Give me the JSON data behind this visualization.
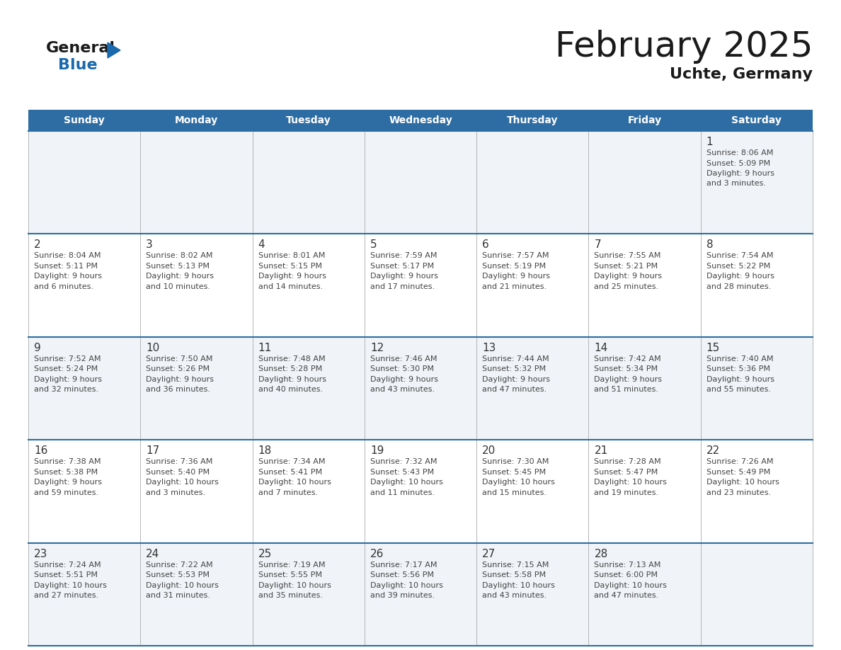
{
  "title": "February 2025",
  "subtitle": "Uchte, Germany",
  "days_of_week": [
    "Sunday",
    "Monday",
    "Tuesday",
    "Wednesday",
    "Thursday",
    "Friday",
    "Saturday"
  ],
  "header_bg": "#2E6DA4",
  "header_text_color": "#FFFFFF",
  "cell_bg_even": "#F0F4F8",
  "cell_bg_odd": "#FFFFFF",
  "border_color": "#2E6DA4",
  "day_number_color": "#333333",
  "text_color": "#444444",
  "line_color": "#AAAAAA",
  "calendar_data": [
    [
      null,
      null,
      null,
      null,
      null,
      null,
      {
        "day": 1,
        "sunrise": "8:06 AM",
        "sunset": "5:09 PM",
        "daylight": "9 hours and 3 minutes"
      }
    ],
    [
      {
        "day": 2,
        "sunrise": "8:04 AM",
        "sunset": "5:11 PM",
        "daylight": "9 hours and 6 minutes"
      },
      {
        "day": 3,
        "sunrise": "8:02 AM",
        "sunset": "5:13 PM",
        "daylight": "9 hours and 10 minutes"
      },
      {
        "day": 4,
        "sunrise": "8:01 AM",
        "sunset": "5:15 PM",
        "daylight": "9 hours and 14 minutes"
      },
      {
        "day": 5,
        "sunrise": "7:59 AM",
        "sunset": "5:17 PM",
        "daylight": "9 hours and 17 minutes"
      },
      {
        "day": 6,
        "sunrise": "7:57 AM",
        "sunset": "5:19 PM",
        "daylight": "9 hours and 21 minutes"
      },
      {
        "day": 7,
        "sunrise": "7:55 AM",
        "sunset": "5:21 PM",
        "daylight": "9 hours and 25 minutes"
      },
      {
        "day": 8,
        "sunrise": "7:54 AM",
        "sunset": "5:22 PM",
        "daylight": "9 hours and 28 minutes"
      }
    ],
    [
      {
        "day": 9,
        "sunrise": "7:52 AM",
        "sunset": "5:24 PM",
        "daylight": "9 hours and 32 minutes"
      },
      {
        "day": 10,
        "sunrise": "7:50 AM",
        "sunset": "5:26 PM",
        "daylight": "9 hours and 36 minutes"
      },
      {
        "day": 11,
        "sunrise": "7:48 AM",
        "sunset": "5:28 PM",
        "daylight": "9 hours and 40 minutes"
      },
      {
        "day": 12,
        "sunrise": "7:46 AM",
        "sunset": "5:30 PM",
        "daylight": "9 hours and 43 minutes"
      },
      {
        "day": 13,
        "sunrise": "7:44 AM",
        "sunset": "5:32 PM",
        "daylight": "9 hours and 47 minutes"
      },
      {
        "day": 14,
        "sunrise": "7:42 AM",
        "sunset": "5:34 PM",
        "daylight": "9 hours and 51 minutes"
      },
      {
        "day": 15,
        "sunrise": "7:40 AM",
        "sunset": "5:36 PM",
        "daylight": "9 hours and 55 minutes"
      }
    ],
    [
      {
        "day": 16,
        "sunrise": "7:38 AM",
        "sunset": "5:38 PM",
        "daylight": "9 hours and 59 minutes"
      },
      {
        "day": 17,
        "sunrise": "7:36 AM",
        "sunset": "5:40 PM",
        "daylight": "10 hours and 3 minutes"
      },
      {
        "day": 18,
        "sunrise": "7:34 AM",
        "sunset": "5:41 PM",
        "daylight": "10 hours and 7 minutes"
      },
      {
        "day": 19,
        "sunrise": "7:32 AM",
        "sunset": "5:43 PM",
        "daylight": "10 hours and 11 minutes"
      },
      {
        "day": 20,
        "sunrise": "7:30 AM",
        "sunset": "5:45 PM",
        "daylight": "10 hours and 15 minutes"
      },
      {
        "day": 21,
        "sunrise": "7:28 AM",
        "sunset": "5:47 PM",
        "daylight": "10 hours and 19 minutes"
      },
      {
        "day": 22,
        "sunrise": "7:26 AM",
        "sunset": "5:49 PM",
        "daylight": "10 hours and 23 minutes"
      }
    ],
    [
      {
        "day": 23,
        "sunrise": "7:24 AM",
        "sunset": "5:51 PM",
        "daylight": "10 hours and 27 minutes"
      },
      {
        "day": 24,
        "sunrise": "7:22 AM",
        "sunset": "5:53 PM",
        "daylight": "10 hours and 31 minutes"
      },
      {
        "day": 25,
        "sunrise": "7:19 AM",
        "sunset": "5:55 PM",
        "daylight": "10 hours and 35 minutes"
      },
      {
        "day": 26,
        "sunrise": "7:17 AM",
        "sunset": "5:56 PM",
        "daylight": "10 hours and 39 minutes"
      },
      {
        "day": 27,
        "sunrise": "7:15 AM",
        "sunset": "5:58 PM",
        "daylight": "10 hours and 43 minutes"
      },
      {
        "day": 28,
        "sunrise": "7:13 AM",
        "sunset": "6:00 PM",
        "daylight": "10 hours and 47 minutes"
      },
      null
    ]
  ],
  "logo_color_general": "#1a1a1a",
  "logo_color_blue": "#1a6aad",
  "logo_triangle_color": "#1a6aad"
}
